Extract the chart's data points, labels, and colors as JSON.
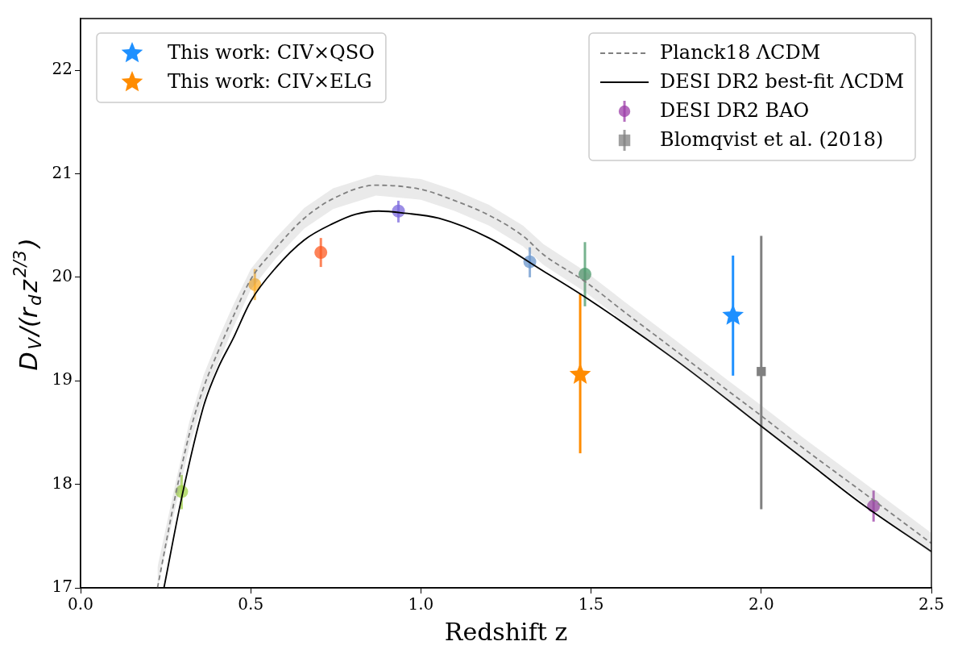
{
  "chart_data": {
    "type": "line",
    "xlabel": "Redshift z",
    "ylabel": "D$_{V}$/(r$_{d}$z$^{2/3}$)",
    "xlim": [
      0,
      2.5
    ],
    "ylim": [
      17,
      22.5
    ],
    "xticks": [
      {
        "value": 0,
        "label": "0.0"
      },
      {
        "value": 0.5,
        "label": "0.5"
      },
      {
        "value": 1,
        "label": "1.0"
      },
      {
        "value": 1.5,
        "label": "1.5"
      },
      {
        "value": 2,
        "label": "2.0"
      },
      {
        "value": 2.5,
        "label": "2.5"
      }
    ],
    "yticks": [
      17,
      18,
      19,
      20,
      21,
      22
    ],
    "grid": false,
    "legend": "top",
    "series": [
      {
        "name": "Planck18 ΛCDM",
        "color": "#808080",
        "line_style": "dashed",
        "marker": "none",
        "x": [
          0.226,
          0.278,
          0.32,
          0.362,
          0.405,
          0.447,
          0.5,
          0.573,
          0.657,
          0.742,
          0.868,
          1.0,
          1.1,
          1.2,
          1.3,
          1.36,
          1.482,
          1.6,
          1.753,
          1.9,
          1.997,
          2.115,
          2.3,
          2.5
        ],
        "values": [
          17.0,
          17.88,
          18.49,
          18.94,
          19.29,
          19.61,
          19.98,
          20.28,
          20.57,
          20.76,
          20.89,
          20.85,
          20.74,
          20.6,
          20.4,
          20.22,
          19.96,
          19.66,
          19.28,
          18.91,
          18.67,
          18.37,
          17.92,
          17.43
        ],
        "lower": [
          17.0,
          17.76,
          18.37,
          18.82,
          19.17,
          19.5,
          19.88,
          20.18,
          20.47,
          20.66,
          20.79,
          20.75,
          20.64,
          20.5,
          20.3,
          20.12,
          19.86,
          19.56,
          19.18,
          18.81,
          18.57,
          18.27,
          17.82,
          17.33
        ],
        "upper": [
          17.2,
          18.0,
          18.61,
          19.06,
          19.41,
          19.72,
          20.08,
          20.38,
          20.67,
          20.86,
          20.99,
          20.95,
          20.84,
          20.7,
          20.5,
          20.32,
          20.06,
          19.76,
          19.38,
          19.01,
          18.77,
          18.47,
          18.02,
          17.53
        ]
      },
      {
        "name": "DESI DR2 best-fit ΛCDM",
        "color": "#000000",
        "line_style": "solid",
        "marker": "none",
        "x": [
          0.245,
          0.297,
          0.362,
          0.405,
          0.447,
          0.5,
          0.573,
          0.657,
          0.742,
          0.809,
          0.876,
          0.952,
          1.053,
          1.2,
          1.36,
          1.482,
          1.753,
          1.997,
          2.115,
          2.3,
          2.5
        ],
        "values": [
          17.0,
          17.87,
          18.76,
          19.13,
          19.4,
          19.77,
          20.09,
          20.36,
          20.52,
          20.61,
          20.64,
          20.62,
          20.57,
          20.38,
          20.06,
          19.81,
          19.19,
          18.57,
          18.27,
          17.8,
          17.35
        ]
      },
      {
        "name": "DESI DR2 BAO",
        "type": "scatter",
        "color": "#9c3ea8",
        "marker": "circle",
        "x": [
          0.297,
          0.512,
          0.706,
          0.934,
          1.32,
          1.482,
          2.33
        ],
        "values": [
          17.93,
          19.93,
          20.24,
          20.64,
          20.15,
          20.03,
          17.79
        ],
        "colors": [
          "#a2d249",
          "#fbb031",
          "#fc5a22",
          "#7b68dd",
          "#6a96cc",
          "#4a9a6a",
          "#9c3ea8"
        ],
        "errors": [
          [
            17.76,
            18.09
          ],
          [
            19.78,
            20.08
          ],
          [
            20.1,
            20.38
          ],
          [
            20.53,
            20.74
          ],
          [
            20.0,
            20.29
          ],
          [
            19.72,
            20.34
          ],
          [
            17.64,
            17.94
          ]
        ]
      },
      {
        "name": "Blomqvist et al. (2018)",
        "type": "scatter",
        "color": "#808080",
        "marker": "square",
        "x": [
          2.0
        ],
        "values": [
          19.09
        ],
        "errors": [
          [
            17.76,
            20.4
          ]
        ]
      },
      {
        "name": "This work: CIV×QSO",
        "type": "scatter",
        "color": "#1e90ff",
        "marker": "star",
        "x": [
          1.917
        ],
        "values": [
          19.63
        ],
        "errors": [
          [
            19.05,
            20.21
          ]
        ]
      },
      {
        "name": "This work: CIV×ELG",
        "type": "scatter",
        "color": "#ff8c00",
        "marker": "star",
        "x": [
          1.468
        ],
        "values": [
          19.06
        ],
        "errors": [
          [
            18.3,
            19.84
          ]
        ]
      }
    ]
  }
}
